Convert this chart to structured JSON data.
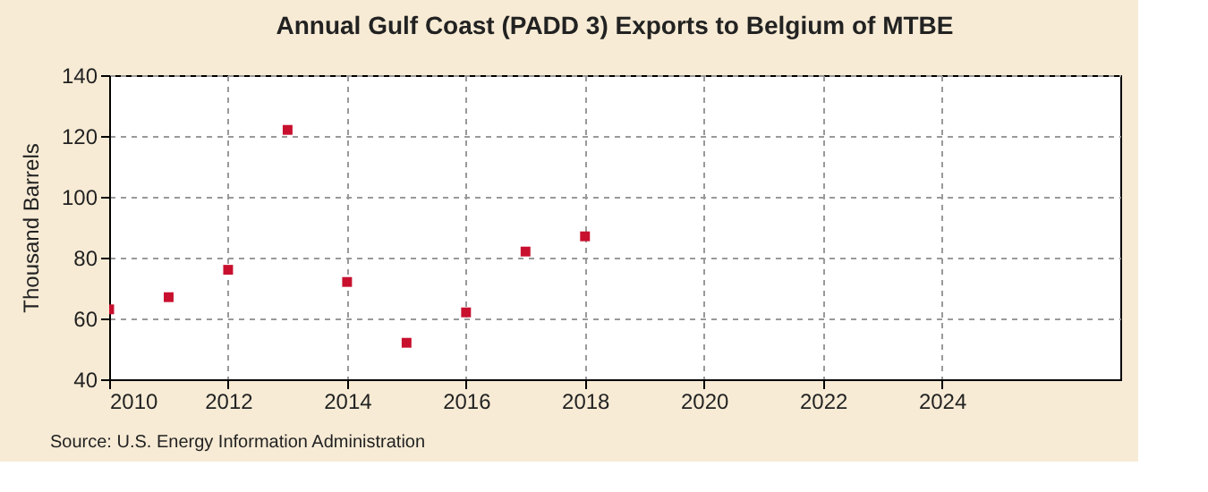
{
  "chart_data": {
    "type": "scatter",
    "title": "Annual Gulf Coast (PADD 3) Exports to Belgium of MTBE",
    "ylabel": "Thousand Barrels",
    "x": [
      2010,
      2011,
      2012,
      2013,
      2014,
      2015,
      2016,
      2017,
      2018
    ],
    "series": [
      {
        "color": "#c8102e",
        "values": [
          63,
          67,
          76,
          122,
          72,
          52,
          62,
          82,
          87
        ]
      }
    ],
    "xlim": [
      2010,
      2027
    ],
    "xticks": [
      2010,
      2012,
      2014,
      2016,
      2018,
      2020,
      2022,
      2024
    ],
    "ylim": [
      40,
      140
    ],
    "yticks": [
      40,
      60,
      80,
      100,
      120,
      140
    ],
    "grid": true,
    "marker": "square",
    "annotations": [
      "Source: U.S. Energy Information Administration"
    ]
  }
}
